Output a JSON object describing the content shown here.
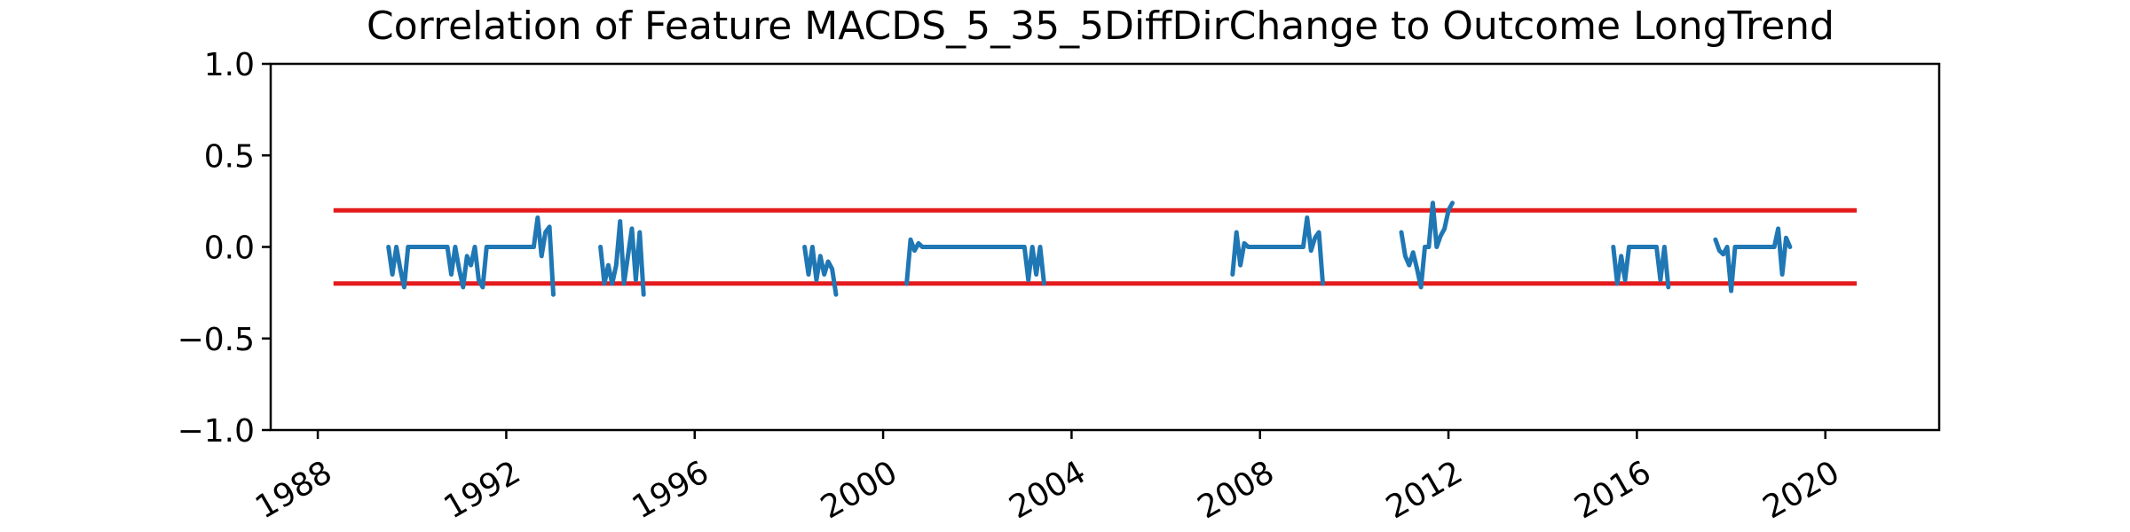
{
  "chart_data": {
    "type": "line",
    "title": "Correlation of Feature MACDS_5_35_5DiffDirChange to Outcome LongTrend",
    "xlabel": "",
    "ylabel": "",
    "ylim": [
      -1.0,
      1.0
    ],
    "xlim": [
      "1987-01-01",
      "2022-06-01"
    ],
    "y_ticks": [
      "−1.0",
      "−0.5",
      "0.0",
      "0.5",
      "1.0"
    ],
    "y_tick_values": [
      -1.0,
      -0.5,
      0.0,
      0.5,
      1.0
    ],
    "x_ticks": [
      "1988",
      "1992",
      "1996",
      "2000",
      "2004",
      "2008",
      "2012",
      "2016",
      "2020"
    ],
    "x_tick_values": [
      "1988-01-01",
      "1992-01-01",
      "1996-01-01",
      "2000-01-01",
      "2004-01-01",
      "2008-01-01",
      "2012-01-01",
      "2016-01-01",
      "2020-01-01"
    ],
    "grid": false,
    "threshold_lines": [
      {
        "y": 0.2,
        "x_start": "1988-05-01",
        "x_end": "2020-09-01",
        "color": "#e41a1c"
      },
      {
        "y": -0.2,
        "x_start": "1988-05-01",
        "x_end": "2020-09-01",
        "color": "#e41a1c"
      }
    ],
    "series": [
      {
        "color": "#1f77b4",
        "segments": [
          [
            [
              "1989-07-01",
              0.0
            ],
            [
              "1989-08-01",
              -0.15
            ],
            [
              "1989-09-01",
              0.0
            ],
            [
              "1989-10-01",
              -0.12
            ],
            [
              "1989-11-01",
              -0.22
            ],
            [
              "1989-12-01",
              0.0
            ],
            [
              "1990-06-01",
              0.0
            ],
            [
              "1990-10-01",
              0.0
            ],
            [
              "1990-11-01",
              -0.15
            ],
            [
              "1990-12-01",
              0.0
            ],
            [
              "1991-01-01",
              -0.12
            ],
            [
              "1991-02-01",
              -0.22
            ],
            [
              "1991-03-01",
              -0.05
            ],
            [
              "1991-04-01",
              -0.1
            ],
            [
              "1991-05-01",
              0.0
            ],
            [
              "1991-06-01",
              -0.18
            ],
            [
              "1991-07-01",
              -0.22
            ],
            [
              "1991-08-01",
              0.0
            ],
            [
              "1992-06-01",
              0.0
            ],
            [
              "1992-08-01",
              0.0
            ],
            [
              "1992-09-01",
              0.16
            ],
            [
              "1992-10-01",
              -0.05
            ],
            [
              "1992-11-01",
              0.08
            ],
            [
              "1992-12-01",
              0.11
            ],
            [
              "1993-01-01",
              -0.26
            ]
          ],
          [
            [
              "1994-01-01",
              0.0
            ],
            [
              "1994-02-01",
              -0.2
            ],
            [
              "1994-03-01",
              -0.1
            ],
            [
              "1994-04-01",
              -0.2
            ],
            [
              "1994-05-01",
              -0.1
            ],
            [
              "1994-06-01",
              0.14
            ],
            [
              "1994-07-01",
              -0.2
            ],
            [
              "1994-08-01",
              -0.05
            ],
            [
              "1994-09-01",
              0.1
            ],
            [
              "1994-10-01",
              -0.18
            ],
            [
              "1994-11-01",
              0.08
            ],
            [
              "1994-12-01",
              -0.26
            ]
          ],
          [
            [
              "1998-05-01",
              0.0
            ],
            [
              "1998-06-01",
              -0.15
            ],
            [
              "1998-07-01",
              0.0
            ],
            [
              "1998-08-01",
              -0.18
            ],
            [
              "1998-09-01",
              -0.05
            ],
            [
              "1998-10-01",
              -0.15
            ],
            [
              "1998-11-01",
              -0.08
            ],
            [
              "1998-12-01",
              -0.12
            ],
            [
              "1999-01-01",
              -0.26
            ]
          ],
          [
            [
              "2000-07-01",
              -0.2
            ],
            [
              "2000-08-01",
              0.04
            ],
            [
              "2000-09-01",
              -0.02
            ],
            [
              "2000-10-01",
              0.02
            ],
            [
              "2000-11-01",
              0.0
            ],
            [
              "2003-01-01",
              0.0
            ],
            [
              "2003-02-01",
              -0.18
            ],
            [
              "2003-03-01",
              0.0
            ],
            [
              "2003-04-01",
              -0.15
            ],
            [
              "2003-05-01",
              0.0
            ],
            [
              "2003-06-01",
              -0.2
            ]
          ],
          [
            [
              "2007-06-01",
              -0.15
            ],
            [
              "2007-07-01",
              0.08
            ],
            [
              "2007-08-01",
              -0.1
            ],
            [
              "2007-09-01",
              0.02
            ],
            [
              "2007-10-01",
              0.0
            ],
            [
              "2008-12-01",
              0.0
            ],
            [
              "2009-01-01",
              0.16
            ],
            [
              "2009-02-01",
              -0.02
            ],
            [
              "2009-03-01",
              0.05
            ],
            [
              "2009-04-01",
              0.08
            ],
            [
              "2009-05-01",
              -0.2
            ]
          ],
          [
            [
              "2011-01-01",
              0.08
            ],
            [
              "2011-02-01",
              -0.05
            ],
            [
              "2011-03-01",
              -0.1
            ],
            [
              "2011-04-01",
              -0.03
            ],
            [
              "2011-05-01",
              -0.12
            ],
            [
              "2011-06-01",
              -0.22
            ],
            [
              "2011-07-01",
              0.0
            ],
            [
              "2011-08-01",
              0.0
            ],
            [
              "2011-09-01",
              0.24
            ],
            [
              "2011-10-01",
              0.0
            ],
            [
              "2011-11-01",
              0.06
            ],
            [
              "2011-12-01",
              0.1
            ],
            [
              "2012-01-01",
              0.2
            ],
            [
              "2012-02-01",
              0.24
            ]
          ],
          [
            [
              "2015-07-01",
              0.0
            ],
            [
              "2015-08-01",
              -0.2
            ],
            [
              "2015-09-01",
              -0.05
            ],
            [
              "2015-10-01",
              -0.18
            ],
            [
              "2015-11-01",
              0.0
            ],
            [
              "2016-06-01",
              0.0
            ],
            [
              "2016-07-01",
              -0.18
            ],
            [
              "2016-08-01",
              0.0
            ],
            [
              "2016-09-01",
              -0.22
            ]
          ],
          [
            [
              "2017-09-01",
              0.04
            ],
            [
              "2017-10-01",
              -0.02
            ],
            [
              "2017-11-01",
              -0.04
            ],
            [
              "2017-12-01",
              0.0
            ],
            [
              "2018-01-01",
              -0.24
            ],
            [
              "2018-02-01",
              0.0
            ],
            [
              "2018-12-01",
              0.0
            ],
            [
              "2019-01-01",
              0.1
            ],
            [
              "2019-02-01",
              -0.15
            ],
            [
              "2019-03-01",
              0.05
            ],
            [
              "2019-04-01",
              0.0
            ]
          ]
        ]
      }
    ]
  }
}
